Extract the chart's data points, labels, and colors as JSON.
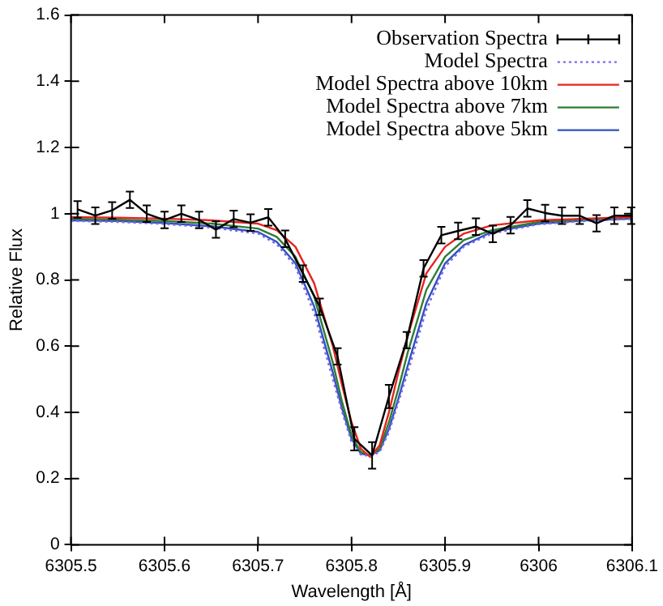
{
  "chart_data": {
    "type": "line",
    "xlabel": "Wavelength [Å]",
    "ylabel": "Relative Flux",
    "xlim": [
      6305.5,
      6306.1
    ],
    "xticks": [
      6305.5,
      6305.6,
      6305.7,
      6305.8,
      6305.9,
      6306,
      6306.1
    ],
    "ylim": [
      0,
      1.6
    ],
    "yticks": [
      0,
      0.2,
      0.4,
      0.6,
      0.8,
      1,
      1.2,
      1.4,
      1.6
    ],
    "grid": false,
    "legend": "top right",
    "series": [
      {
        "name": "Observation Spectra",
        "color": "#000000",
        "x": [
          6305.507,
          6305.526,
          6305.544,
          6305.563,
          6305.581,
          6305.6,
          6305.618,
          6305.637,
          6305.655,
          6305.674,
          6305.692,
          6305.711,
          6305.729,
          6305.748,
          6305.766,
          6305.785,
          6305.803,
          6305.822,
          6305.84,
          6305.859,
          6305.877,
          6305.896,
          6305.914,
          6305.933,
          6305.951,
          6305.97,
          6305.988,
          6306.007,
          6306.025,
          6306.044,
          6306.062,
          6306.081,
          6306.099
        ],
        "values": [
          1.013,
          0.994,
          1.01,
          1.042,
          1.0,
          0.981,
          1.0,
          0.981,
          0.952,
          0.984,
          0.973,
          0.989,
          0.924,
          0.819,
          0.719,
          0.569,
          0.32,
          0.27,
          0.448,
          0.618,
          0.835,
          0.935,
          0.948,
          0.961,
          0.939,
          0.965,
          1.016,
          1.002,
          0.994,
          0.994,
          0.971,
          0.994,
          0.994
        ],
        "errors": [
          0.025,
          0.025,
          0.025,
          0.025,
          0.025,
          0.025,
          0.025,
          0.025,
          0.025,
          0.025,
          0.025,
          0.025,
          0.025,
          0.025,
          0.025,
          0.025,
          0.035,
          0.04,
          0.035,
          0.025,
          0.025,
          0.025,
          0.025,
          0.025,
          0.025,
          0.025,
          0.025,
          0.025,
          0.025,
          0.025,
          0.025,
          0.025,
          0.025
        ]
      },
      {
        "name": "Model Spectra",
        "color": "#7b68ee",
        "line_style": "dotted",
        "x": [
          6305.5,
          6305.55,
          6305.6,
          6305.65,
          6305.7,
          6305.72,
          6305.74,
          6305.76,
          6305.78,
          6305.79,
          6305.8,
          6305.81,
          6305.82,
          6305.83,
          6305.84,
          6305.85,
          6305.86,
          6305.88,
          6305.9,
          6305.92,
          6305.95,
          6306,
          6306.05,
          6306.1
        ],
        "values": [
          0.978,
          0.975,
          0.969,
          0.958,
          0.94,
          0.908,
          0.84,
          0.7,
          0.5,
          0.4,
          0.31,
          0.272,
          0.268,
          0.28,
          0.34,
          0.43,
          0.52,
          0.71,
          0.84,
          0.9,
          0.94,
          0.968,
          0.978,
          0.984
        ]
      },
      {
        "name": "Model Spectra above 10km",
        "color": "#e8231f",
        "x": [
          6305.5,
          6305.55,
          6305.6,
          6305.65,
          6305.7,
          6305.72,
          6305.74,
          6305.76,
          6305.78,
          6305.79,
          6305.8,
          6305.81,
          6305.82,
          6305.83,
          6305.84,
          6305.85,
          6305.86,
          6305.88,
          6305.9,
          6305.92,
          6305.95,
          6306,
          6306.05,
          6306.1
        ],
        "values": [
          0.99,
          0.988,
          0.985,
          0.98,
          0.97,
          0.95,
          0.9,
          0.79,
          0.6,
          0.48,
          0.37,
          0.29,
          0.265,
          0.3,
          0.4,
          0.52,
          0.63,
          0.82,
          0.9,
          0.94,
          0.965,
          0.98,
          0.985,
          0.99
        ]
      },
      {
        "name": "Model Spectra above 7km",
        "color": "#2e7d32",
        "x": [
          6305.5,
          6305.55,
          6305.6,
          6305.65,
          6305.7,
          6305.72,
          6305.74,
          6305.76,
          6305.78,
          6305.79,
          6305.8,
          6305.81,
          6305.82,
          6305.83,
          6305.84,
          6305.85,
          6305.86,
          6305.88,
          6305.9,
          6305.92,
          6305.95,
          6306,
          6306.05,
          6306.1
        ],
        "values": [
          0.985,
          0.982,
          0.978,
          0.97,
          0.955,
          0.93,
          0.87,
          0.75,
          0.55,
          0.43,
          0.33,
          0.28,
          0.27,
          0.29,
          0.37,
          0.47,
          0.58,
          0.77,
          0.87,
          0.92,
          0.95,
          0.975,
          0.983,
          0.988
        ]
      },
      {
        "name": "Model Spectra above 5km",
        "color": "#3050c0",
        "x": [
          6305.5,
          6305.55,
          6305.6,
          6305.65,
          6305.7,
          6305.72,
          6305.74,
          6305.76,
          6305.78,
          6305.79,
          6305.8,
          6305.81,
          6305.82,
          6305.83,
          6305.84,
          6305.85,
          6305.86,
          6305.88,
          6305.9,
          6305.92,
          6305.95,
          6306,
          6306.05,
          6306.1
        ],
        "values": [
          0.98,
          0.978,
          0.972,
          0.962,
          0.945,
          0.915,
          0.85,
          0.72,
          0.52,
          0.41,
          0.32,
          0.275,
          0.27,
          0.285,
          0.35,
          0.44,
          0.54,
          0.73,
          0.85,
          0.905,
          0.945,
          0.97,
          0.98,
          0.985
        ]
      }
    ]
  }
}
